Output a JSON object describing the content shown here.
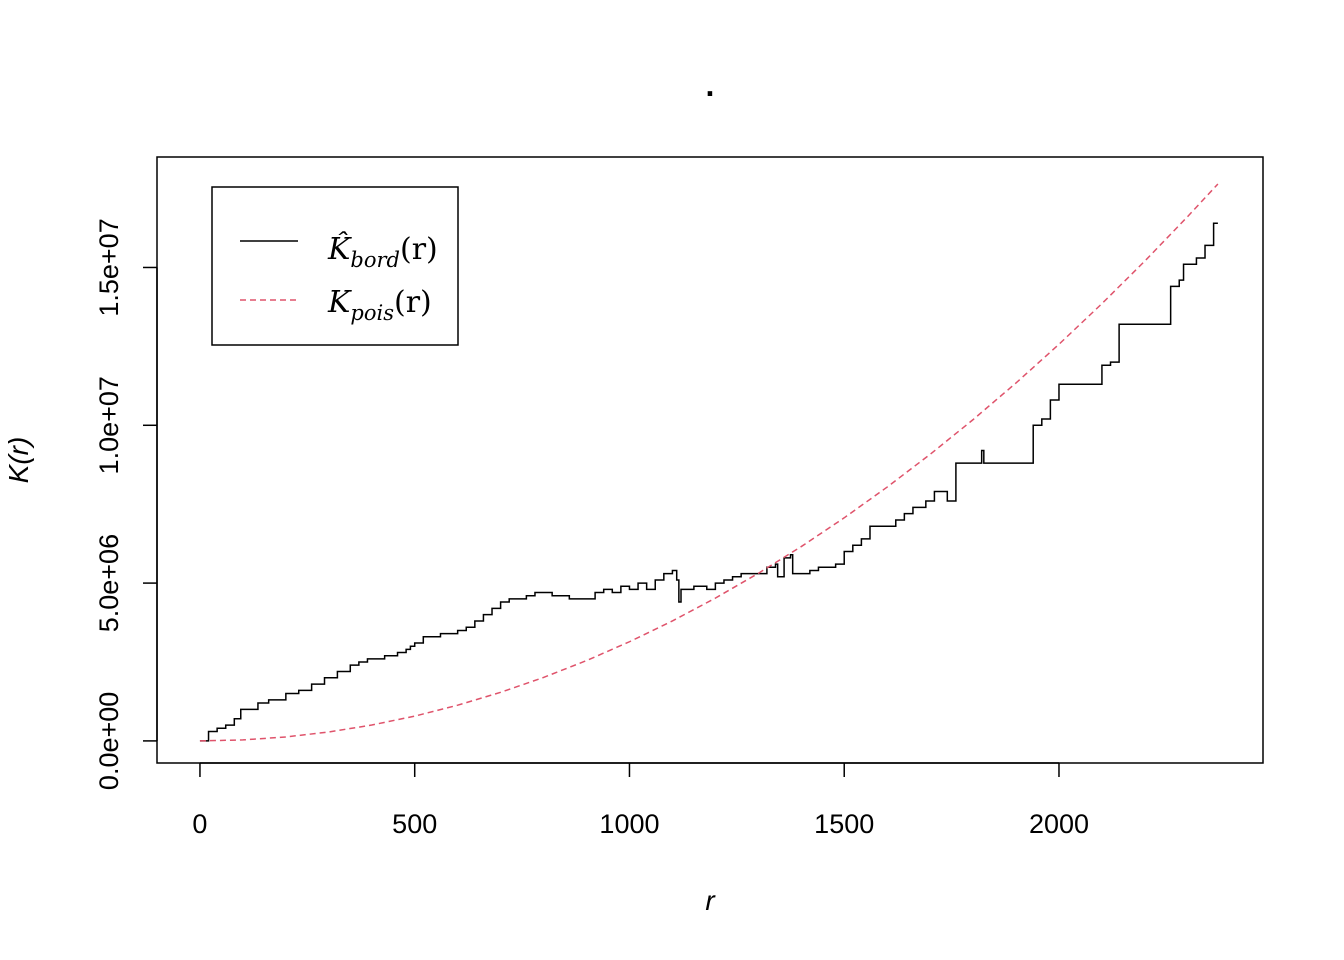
{
  "chart_data": {
    "type": "line",
    "title": ".",
    "xlabel": "r",
    "ylabel": "K(r)",
    "xlim": [
      -100,
      2475
    ],
    "ylim": [
      -700000,
      18500000
    ],
    "x_ticks": [
      0,
      500,
      1000,
      1500,
      2000
    ],
    "x_tick_labels": [
      "0",
      "500",
      "1000",
      "1500",
      "2000"
    ],
    "y_ticks": [
      0,
      5000000,
      10000000,
      15000000
    ],
    "y_tick_labels": [
      "0.0e+00",
      "5.0e+06",
      "1.0e+07",
      "1.5e+07"
    ],
    "grid": false,
    "legend_position": "top-left",
    "series": [
      {
        "name": "K̂bord(r)",
        "legend_main": "K̂",
        "legend_sub": "bord",
        "legend_tail": "(r)",
        "color": "#000000",
        "dash": "solid",
        "step": true,
        "x": [
          0,
          20,
          40,
          60,
          80,
          95,
          135,
          160,
          200,
          230,
          260,
          290,
          320,
          350,
          370,
          390,
          430,
          460,
          480,
          490,
          500,
          520,
          560,
          600,
          620,
          640,
          660,
          680,
          700,
          720,
          760,
          780,
          820,
          860,
          900,
          920,
          940,
          960,
          980,
          1000,
          1020,
          1040,
          1060,
          1080,
          1100,
          1110,
          1115,
          1120,
          1150,
          1180,
          1200,
          1220,
          1240,
          1260,
          1300,
          1320,
          1340,
          1345,
          1360,
          1375,
          1380,
          1420,
          1440,
          1460,
          1480,
          1500,
          1520,
          1540,
          1560,
          1600,
          1620,
          1640,
          1660,
          1690,
          1710,
          1740,
          1760,
          1800,
          1820,
          1825,
          1860,
          1900,
          1920,
          1940,
          1960,
          1980,
          2000,
          2060,
          2080,
          2100,
          2120,
          2140,
          2160,
          2200,
          2240,
          2260,
          2280,
          2290,
          2300,
          2320,
          2340,
          2360,
          2370
        ],
        "y": [
          0,
          300000,
          400000,
          500000,
          700000,
          1000000,
          1200000,
          1300000,
          1500000,
          1600000,
          1800000,
          2000000,
          2200000,
          2400000,
          2500000,
          2600000,
          2700000,
          2800000,
          2900000,
          3000000,
          3100000,
          3300000,
          3400000,
          3500000,
          3600000,
          3800000,
          4000000,
          4200000,
          4400000,
          4500000,
          4600000,
          4700000,
          4600000,
          4500000,
          4500000,
          4700000,
          4800000,
          4700000,
          4900000,
          4800000,
          5000000,
          4800000,
          5100000,
          5300000,
          5400000,
          5100000,
          4400000,
          4800000,
          4900000,
          4800000,
          5000000,
          5100000,
          5200000,
          5300000,
          5300000,
          5500000,
          5600000,
          5200000,
          5800000,
          5900000,
          5300000,
          5400000,
          5500000,
          5500000,
          5600000,
          6000000,
          6200000,
          6400000,
          6800000,
          6800000,
          7000000,
          7200000,
          7400000,
          7600000,
          7900000,
          7600000,
          8800000,
          8800000,
          9200000,
          8800000,
          8800000,
          8800000,
          8800000,
          10000000,
          10200000,
          10800000,
          11300000,
          11300000,
          11300000,
          11900000,
          12000000,
          13200000,
          13200000,
          13200000,
          13200000,
          14400000,
          14600000,
          15100000,
          15100000,
          15300000,
          15700000,
          16400000,
          16400000
        ]
      },
      {
        "name": "Kpois(r)",
        "legend_main": "K",
        "legend_sub": "pois",
        "legend_tail": "(r)",
        "color": "#DF536B",
        "dash": "dashed",
        "step": false,
        "function": "pi*r^2",
        "x": [
          0,
          100,
          200,
          300,
          400,
          500,
          600,
          700,
          800,
          900,
          1000,
          1100,
          1200,
          1300,
          1400,
          1500,
          1600,
          1700,
          1800,
          1900,
          2000,
          2100,
          2200,
          2300,
          2370
        ],
        "y": [
          0,
          31416,
          125664,
          282743,
          502655,
          785398,
          1130973,
          1539380,
          2010619,
          2544690,
          3141593,
          3801327,
          4523893,
          5309292,
          6157522,
          7068583,
          8042477,
          9079203,
          10178760,
          11341149,
          12566371,
          13854424,
          15205308,
          16619025,
          17646113
        ]
      }
    ]
  }
}
